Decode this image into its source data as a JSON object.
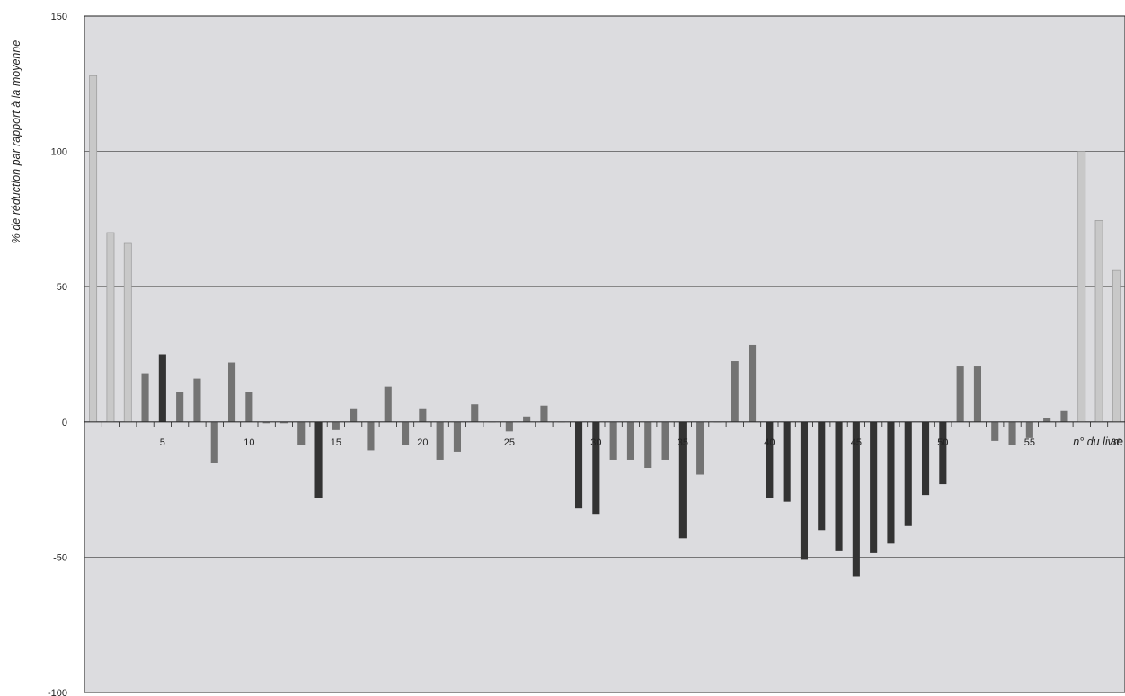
{
  "chart_data": {
    "type": "bar",
    "title": "",
    "xlabel": "n° du livre",
    "ylabel": "% de réduction par rapport à la moyenne",
    "ylim": [
      -100,
      150
    ],
    "xlim": [
      0.5,
      60.5
    ],
    "y_ticks": [
      "150",
      "100",
      "50",
      "0",
      "-50",
      "-100"
    ],
    "x_ticks": [
      "5",
      "10",
      "15",
      "20",
      "25",
      "30",
      "35",
      "40",
      "45",
      "50",
      "55",
      "60"
    ],
    "grid": "horizontal",
    "plot_background": "#dcdcdf",
    "colors": {
      "light": "#c8c8c8",
      "medium": "#737373",
      "dark": "#333333",
      "grid": "#555555"
    },
    "categories": [
      1,
      2,
      3,
      4,
      5,
      6,
      7,
      8,
      9,
      10,
      11,
      12,
      13,
      14,
      15,
      16,
      17,
      18,
      19,
      20,
      21,
      22,
      23,
      24,
      25,
      26,
      27,
      28,
      29,
      30,
      31,
      32,
      33,
      34,
      35,
      36,
      37,
      38,
      39,
      40,
      41,
      42,
      43,
      44,
      45,
      46,
      47,
      48,
      49,
      50,
      51,
      52,
      53,
      54,
      55,
      56,
      57,
      58,
      59,
      60
    ],
    "values": [
      128,
      70,
      66,
      18,
      25,
      11,
      16,
      -15,
      22,
      11,
      -0.5,
      -0.5,
      -8.5,
      -28,
      -3,
      5,
      -10.5,
      13,
      -8.5,
      5,
      -14,
      -11,
      6.5,
      0,
      -3.5,
      2,
      6,
      0,
      -32,
      -34,
      -14,
      -14,
      -17,
      -14,
      -43,
      -19.5,
      0,
      22.5,
      28.5,
      -28,
      -29.5,
      -51,
      -40,
      -47.5,
      -57,
      -48.5,
      -45,
      -38.5,
      -27,
      -23,
      20.5,
      20.5,
      -7,
      -8.5,
      -6,
      1.5,
      4,
      100,
      74.5,
      56
    ],
    "tones": [
      "light",
      "light",
      "light",
      "medium",
      "dark",
      "medium",
      "medium",
      "medium",
      "medium",
      "medium",
      "medium",
      "medium",
      "medium",
      "dark",
      "medium",
      "medium",
      "medium",
      "medium",
      "medium",
      "medium",
      "medium",
      "medium",
      "medium",
      "medium",
      "medium",
      "medium",
      "medium",
      "medium",
      "dark",
      "dark",
      "medium",
      "medium",
      "medium",
      "medium",
      "dark",
      "medium",
      "medium",
      "medium",
      "medium",
      "dark",
      "dark",
      "dark",
      "dark",
      "dark",
      "dark",
      "dark",
      "dark",
      "dark",
      "dark",
      "dark",
      "medium",
      "medium",
      "medium",
      "medium",
      "medium",
      "medium",
      "medium",
      "light",
      "light",
      "light"
    ]
  }
}
